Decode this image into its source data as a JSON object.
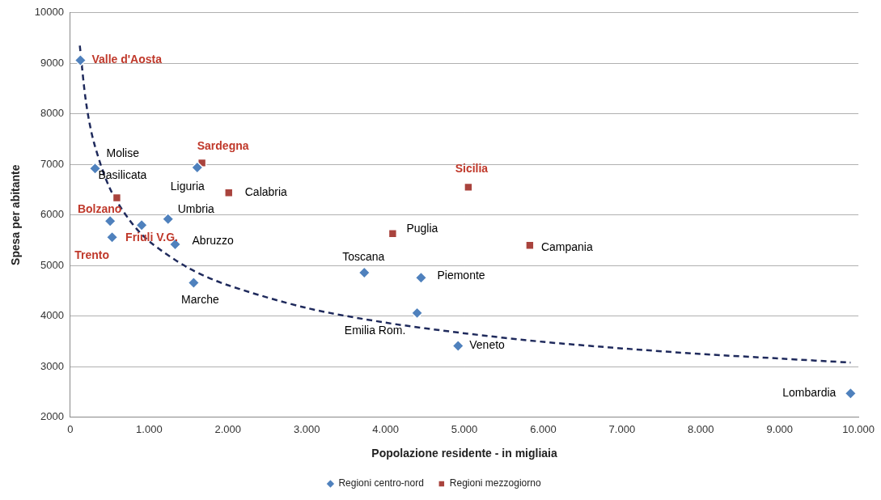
{
  "chart_data": {
    "type": "scatter",
    "x_label": "Popolazione residente - in migliaia",
    "y_label": "Spesa per abitante",
    "xlim": [
      0,
      10000
    ],
    "xticks": [
      0,
      {
        "value": 1000,
        "label": "1.000"
      },
      {
        "value": 2000,
        "label": "2.000"
      },
      {
        "value": 3000,
        "label": "3.000"
      },
      {
        "value": 4000,
        "label": "4.000"
      },
      {
        "value": 5000,
        "label": "5.000"
      },
      {
        "value": 6000,
        "label": "6.000"
      },
      {
        "value": 7000,
        "label": "7.000"
      },
      {
        "value": 8000,
        "label": "8.000"
      },
      {
        "value": 9000,
        "label": "9.000"
      },
      {
        "value": 10000,
        "label": "10.000"
      }
    ],
    "ylim": [
      2000,
      10000
    ],
    "yticks": [
      2000,
      3000,
      4000,
      5000,
      6000,
      7000,
      8000,
      9000,
      10000
    ],
    "grid": "y",
    "legend": "bottom",
    "series": [
      {
        "name": "Regioni centro-nord",
        "color": "#4f81bd",
        "marker": "diamond",
        "x": [
          128,
          314,
          505,
          530,
          905,
          1240,
          1330,
          1565,
          1610,
          3730,
          4450,
          4400,
          4920,
          9900
        ],
        "values": [
          9060,
          6920,
          5880,
          5560,
          5800,
          5920,
          5420,
          4660,
          6940,
          4860,
          4760,
          4060,
          3410,
          2470
        ]
      },
      {
        "name": "Regioni mezzogiorno",
        "color": "#a9433d",
        "marker": "square",
        "x": [
          590,
          1670,
          2010,
          4090,
          5050,
          5830
        ],
        "values": [
          6340,
          7030,
          6440,
          5630,
          6550,
          5400
        ]
      },
      {
        "type": "line",
        "line_style": "dashed",
        "marker": "none",
        "color": "#1f2a5c",
        "x": [
          120,
          200,
          300,
          500,
          750,
          1000,
          1500,
          2000,
          3000,
          4000,
          5000,
          6000,
          7000,
          8000,
          9000,
          9900
        ],
        "values": [
          9350,
          8220,
          7430,
          6530,
          5900,
          5480,
          4950,
          4610,
          4160,
          3870,
          3660,
          3490,
          3360,
          3250,
          3160,
          3080
        ]
      }
    ],
    "annotations": [
      {
        "text": "Valle d'Aosta",
        "x": 128,
        "y": 9060,
        "color": "#c0392b"
      },
      {
        "text": "Molise",
        "x": 314,
        "y": 6920,
        "color": "#000000"
      },
      {
        "text": "Basilicata",
        "x": 590,
        "y": 6340,
        "color": "#000000"
      },
      {
        "text": "Bolzano",
        "x": 505,
        "y": 5880,
        "color": "#c0392b"
      },
      {
        "text": "Trento",
        "x": 530,
        "y": 5560,
        "color": "#c0392b"
      },
      {
        "text": "Friuli V.G.",
        "x": 905,
        "y": 5800,
        "color": "#c0392b"
      },
      {
        "text": "Umbria",
        "x": 1240,
        "y": 5920,
        "color": "#000000"
      },
      {
        "text": "Abruzzo",
        "x": 1330,
        "y": 5420,
        "color": "#000000"
      },
      {
        "text": "Marche",
        "x": 1565,
        "y": 4660,
        "color": "#000000"
      },
      {
        "text": "Liguria",
        "x": 1610,
        "y": 6940,
        "color": "#000000"
      },
      {
        "text": "Sardegna",
        "x": 1670,
        "y": 7030,
        "color": "#c0392b"
      },
      {
        "text": "Calabria",
        "x": 2010,
        "y": 6440,
        "color": "#000000"
      },
      {
        "text": "Toscana",
        "x": 3730,
        "y": 4860,
        "color": "#000000"
      },
      {
        "text": "Puglia",
        "x": 4090,
        "y": 5630,
        "color": "#000000"
      },
      {
        "text": "Sicilia",
        "x": 5050,
        "y": 6550,
        "color": "#c0392b"
      },
      {
        "text": "Piemonte",
        "x": 4450,
        "y": 4760,
        "color": "#000000"
      },
      {
        "text": "Campania",
        "x": 5830,
        "y": 5400,
        "color": "#000000"
      },
      {
        "text": "Emilia Rom.",
        "x": 4400,
        "y": 4060,
        "color": "#000000"
      },
      {
        "text": "Veneto",
        "x": 4920,
        "y": 3410,
        "color": "#000000"
      },
      {
        "text": "Lombardia",
        "x": 9900,
        "y": 2470,
        "color": "#000000"
      }
    ]
  }
}
